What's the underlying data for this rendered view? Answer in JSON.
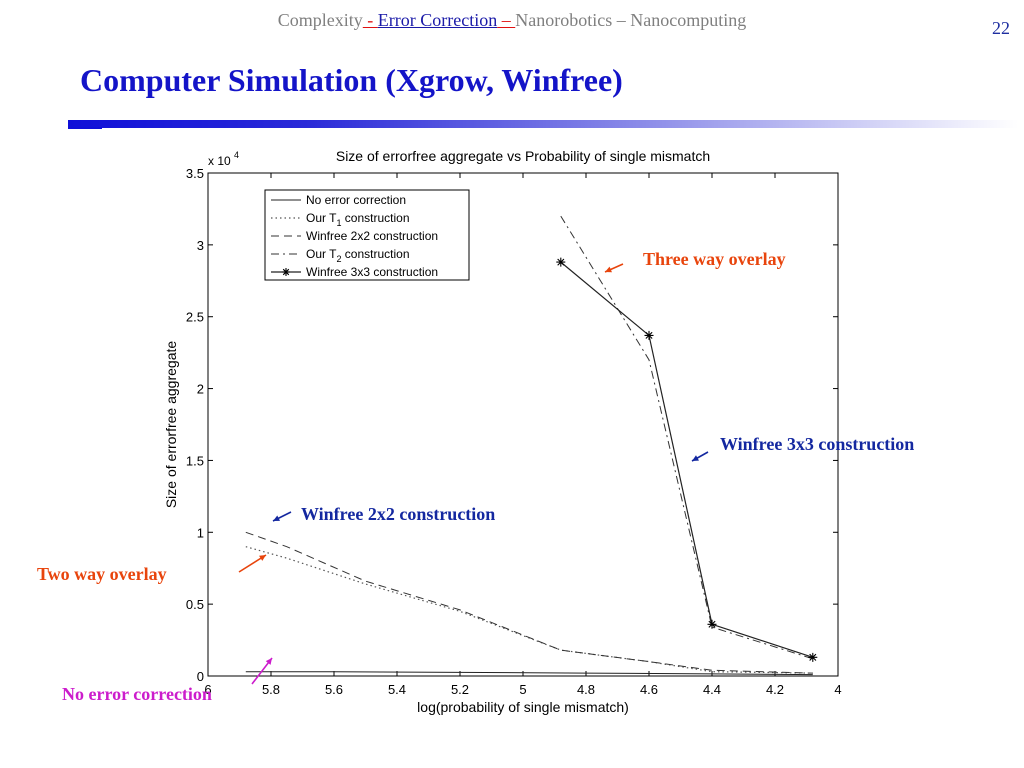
{
  "header": {
    "nav_complexity": "Complexity",
    "nav_sep1": " - ",
    "nav_error_correction": "Error Correction",
    "nav_sep2": " – ",
    "nav_nanorobotics": "Nanorobotics",
    "nav_sep3": " – ",
    "nav_nanocomputing": "Nanocomputing",
    "slide_number": "22"
  },
  "slide": {
    "title": "Computer Simulation (Xgrow, Winfree)"
  },
  "annotations": {
    "three_way": "Three way overlay",
    "winfree_3x3": "Winfree 3x3 construction",
    "winfree_2x2": "Winfree 2x2 construction",
    "two_way": "Two way overlay",
    "no_error": "No error correction"
  },
  "colors": {
    "title": "#1414c8",
    "annotation_red": "#e8440c",
    "annotation_blue": "#1428a0",
    "annotation_magenta": "#cc1ccc"
  },
  "chart_data": {
    "type": "line",
    "title": "Size of errorfree aggregate vs Probability of single mismatch",
    "xlabel": "log(probability of single mismatch)",
    "ylabel": "Size of errorfree aggregate",
    "y_exponent_label": "x 10",
    "y_exponent_power": "4",
    "xlim": [
      6,
      4
    ],
    "ylim": [
      0,
      3.5
    ],
    "x_ticks": [
      6,
      5.8,
      5.6,
      5.4,
      5.2,
      5,
      4.8,
      4.6,
      4.4,
      4.2,
      4
    ],
    "x_tick_labels": [
      "6",
      "5.8",
      "5.6",
      "5.4",
      "5.2",
      "5",
      "4.8",
      "4.6",
      "4.4",
      "4.2",
      "4"
    ],
    "y_ticks": [
      0,
      0.5,
      1,
      1.5,
      2,
      2.5,
      3,
      3.5
    ],
    "y_tick_labels": [
      "0",
      "0.5",
      "1",
      "1.5",
      "2",
      "2.5",
      "3",
      "3.5"
    ],
    "grid": false,
    "legend_position": "top-left",
    "legend": [
      {
        "label": "No error correction",
        "style": "solid"
      },
      {
        "label": "Our T",
        "subscript": "1",
        "label_suffix": " construction",
        "style": "dotted"
      },
      {
        "label": "Winfree 2x2 construction",
        "style": "dashed"
      },
      {
        "label": "Our T",
        "subscript": "2",
        "label_suffix": " construction",
        "style": "dashdot"
      },
      {
        "label": "Winfree 3x3 construction",
        "style": "solid-star"
      }
    ],
    "series": [
      {
        "name": "No error correction",
        "style": "solid",
        "x": [
          5.88,
          5.6,
          5.2,
          4.8,
          4.4,
          4.08
        ],
        "y": [
          0.03,
          0.03,
          0.025,
          0.02,
          0.015,
          0.01
        ]
      },
      {
        "name": "Our T1 construction",
        "style": "dotted",
        "x": [
          5.88,
          5.75,
          5.5,
          5.2,
          4.88,
          4.6,
          4.4,
          4.08
        ],
        "y": [
          0.9,
          0.82,
          0.64,
          0.45,
          0.18,
          0.1,
          0.03,
          0.02
        ]
      },
      {
        "name": "Winfree 2x2 construction",
        "style": "dashed",
        "x": [
          5.88,
          5.75,
          5.5,
          5.2,
          4.88,
          4.6,
          4.4,
          4.08
        ],
        "y": [
          1.0,
          0.9,
          0.66,
          0.46,
          0.18,
          0.1,
          0.04,
          0.02
        ]
      },
      {
        "name": "Our T2 construction",
        "style": "dashdot",
        "x": [
          4.88,
          4.6,
          4.4,
          4.08
        ],
        "y": [
          3.2,
          2.2,
          0.34,
          0.12
        ]
      },
      {
        "name": "Winfree 3x3 construction",
        "style": "solid-star",
        "x": [
          4.88,
          4.6,
          4.4,
          4.08
        ],
        "y": [
          2.88,
          2.37,
          0.36,
          0.13
        ]
      }
    ]
  }
}
